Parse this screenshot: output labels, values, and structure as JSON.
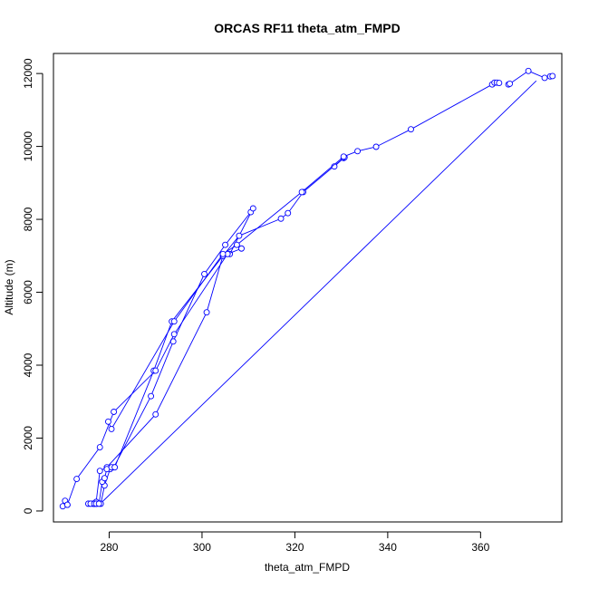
{
  "chart_data": {
    "type": "scatter",
    "title": "ORCAS RF11 theta_atm_FMPD",
    "xlabel": "theta_atm_FMPD",
    "ylabel": "Altitude (m)",
    "xlim": [
      268,
      377.5
    ],
    "ylim": [
      -300,
      12550
    ],
    "xticks": [
      280,
      300,
      320,
      340,
      360
    ],
    "yticks": [
      0,
      2000,
      4000,
      6000,
      8000,
      10000,
      12000
    ],
    "grid": false,
    "legend": "none",
    "series": [
      {
        "style": "points+line",
        "x": [
          276.8,
          277.3,
          278.2,
          279.0,
          280.2,
          281.0,
          289.0,
          293.8,
          300.5,
          305.0,
          310.5,
          311.0,
          306.0,
          304.5,
          301.0,
          290.0,
          279.5,
          278.0,
          277.2,
          276.5,
          275.5,
          276.0,
          276.8,
          277.2,
          277.8,
          278.5,
          279.0,
          279.5,
          280.5,
          281.2,
          289.6,
          293.5,
          304.5,
          308.0,
          317.0,
          318.5,
          321.8,
          330.5,
          330.7,
          328.5
        ],
        "y": [
          200,
          200,
          200,
          700,
          1150,
          1200,
          3150,
          4650,
          6500,
          7300,
          8200,
          8300,
          7050,
          7000,
          5450,
          2650,
          1200,
          1100,
          250,
          200,
          200,
          200,
          200,
          200,
          200,
          800,
          900,
          1150,
          1200,
          1200,
          3850,
          5200,
          7000,
          7550,
          8020,
          8170,
          8750,
          9680,
          9700,
          9450
        ]
      },
      {
        "style": "points+line",
        "x": [
          270.0,
          270.5,
          271.0,
          271.0,
          273.0,
          278.0,
          281.0,
          290.0,
          294.0,
          305.5,
          308.5
        ],
        "y": [
          130,
          280,
          170,
          170,
          880,
          1750,
          2720,
          3850,
          4850,
          7050,
          7200
        ]
      },
      {
        "style": "points+line",
        "x": [
          279.8,
          280.5,
          294.0,
          304.5,
          307.5,
          321.5,
          330.5,
          333.5,
          337.5,
          345.0,
          362.5,
          363.0,
          363.5,
          364.0
        ],
        "y": [
          2450,
          2250,
          5200,
          7050,
          7300,
          8750,
          9720,
          9870,
          9990,
          10470,
          11700,
          11750,
          11750,
          11740
        ]
      },
      {
        "style": "points+line",
        "x": [
          366.0,
          366.3,
          370.3,
          373.8,
          375.0,
          375.5
        ],
        "y": [
          11700,
          11720,
          12070,
          11880,
          11920,
          11930
        ]
      },
      {
        "style": "line",
        "x": [
          278.5,
          372.0
        ],
        "y": [
          250,
          11800
        ]
      }
    ],
    "color": "#0000ff"
  }
}
